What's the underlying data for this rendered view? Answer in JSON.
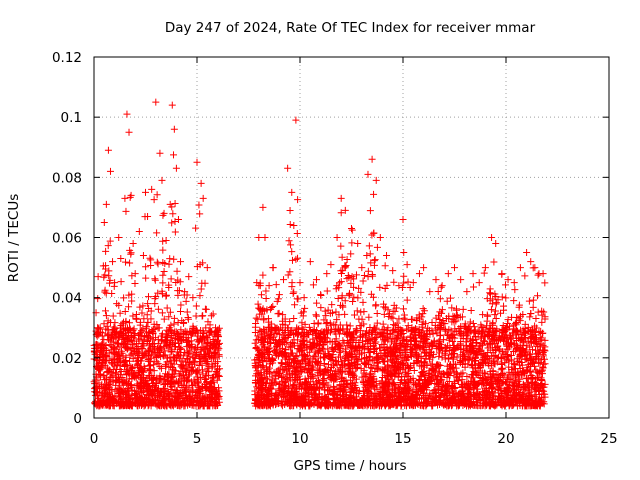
{
  "chart_data": {
    "type": "scatter",
    "title": "Day 247 of 2024, Rate Of TEC Index for receiver mmar",
    "xlabel": "GPS time / hours",
    "ylabel": "ROTI / TECUs",
    "xlim": [
      0,
      25
    ],
    "ylim": [
      0,
      0.12
    ],
    "xticks": [
      0,
      5,
      10,
      15,
      20,
      25
    ],
    "xtick_labels": [
      "0",
      "5",
      "10",
      "15",
      "20",
      "25"
    ],
    "yticks": [
      0,
      0.02,
      0.04,
      0.06,
      0.08,
      0.1,
      0.12
    ],
    "ytick_labels": [
      "0",
      "0.02",
      "0.04",
      "0.06",
      "0.08",
      "0.1",
      "0.12"
    ],
    "grid": true,
    "marker": "plus",
    "color": "#ff0000",
    "series": [
      {
        "x": [
          0.1,
          0.2,
          0.3,
          0.5,
          0.6,
          0.7,
          0.8,
          0.9,
          1.0,
          1.1,
          1.2,
          1.3,
          1.5,
          1.6,
          1.7,
          1.8,
          1.9,
          2.0,
          2.2,
          2.4,
          2.5,
          2.6,
          2.8,
          3.0,
          3.2,
          3.3,
          3.4,
          3.5,
          3.7,
          3.8,
          3.9,
          4.0,
          4.1,
          4.2,
          4.4,
          4.6,
          4.8,
          5.0,
          5.2,
          5.3,
          5.5,
          5.7,
          5.9,
          6.0,
          7.9,
          8.0,
          8.2,
          8.3,
          8.5,
          8.7,
          9.0,
          9.2,
          9.4,
          9.6,
          9.7,
          9.8,
          10.0,
          10.2,
          10.5,
          10.8,
          11.0,
          11.3,
          11.5,
          11.8,
          12.0,
          12.2,
          12.5,
          12.8,
          13.0,
          13.3,
          13.5,
          13.7,
          13.9,
          14.2,
          14.5,
          14.8,
          15.0,
          15.2,
          15.5,
          15.8,
          16.0,
          16.3,
          16.6,
          16.9,
          17.2,
          17.5,
          17.8,
          18.1,
          18.4,
          18.7,
          19.0,
          19.3,
          19.5,
          19.8,
          20.1,
          20.4,
          20.7,
          21.0,
          21.2,
          21.4,
          21.6,
          21.8
        ],
        "y": [
          0.035,
          0.047,
          0.03,
          0.065,
          0.071,
          0.089,
          0.082,
          0.052,
          0.045,
          0.038,
          0.06,
          0.053,
          0.073,
          0.101,
          0.095,
          0.074,
          0.058,
          0.048,
          0.062,
          0.054,
          0.075,
          0.067,
          0.076,
          0.105,
          0.088,
          0.079,
          0.068,
          0.059,
          0.071,
          0.104,
          0.096,
          0.083,
          0.066,
          0.052,
          0.042,
          0.047,
          0.04,
          0.085,
          0.078,
          0.073,
          0.05,
          0.034,
          0.03,
          0.029,
          0.045,
          0.06,
          0.07,
          0.06,
          0.044,
          0.05,
          0.041,
          0.046,
          0.083,
          0.075,
          0.064,
          0.099,
          0.045,
          0.04,
          0.052,
          0.046,
          0.041,
          0.048,
          0.051,
          0.06,
          0.073,
          0.069,
          0.063,
          0.058,
          0.05,
          0.081,
          0.086,
          0.079,
          0.06,
          0.054,
          0.049,
          0.044,
          0.066,
          0.051,
          0.045,
          0.048,
          0.05,
          0.042,
          0.046,
          0.044,
          0.048,
          0.05,
          0.046,
          0.042,
          0.048,
          0.045,
          0.05,
          0.06,
          0.058,
          0.048,
          0.046,
          0.045,
          0.05,
          0.055,
          0.052,
          0.05,
          0.048,
          0.048
        ]
      }
    ]
  }
}
